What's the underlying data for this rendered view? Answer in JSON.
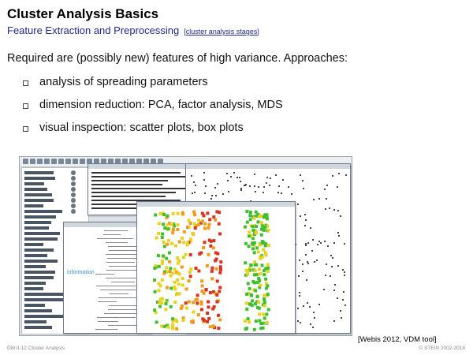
{
  "slide": {
    "title": "Cluster Analysis Basics",
    "subtitle": "Feature Extraction and Preprocessing",
    "link_text": "cluster analysis stages",
    "intro": "Required are (possibly new) features of high variance. Approaches:",
    "bullets": [
      "analysis of spreading parameters",
      "dimension reduction: PCA, factor analysis, MDS",
      "visual inspection: scatter plots, box plots"
    ],
    "image_credit": "[Webis 2012, VDM tool]",
    "footer_left": "DM:II-12   Cluster Analysis",
    "footer_right": "© STEIN 2002-2018"
  },
  "screenshot": {
    "tree_label": "information",
    "colors": {
      "green": "#3fbf2f",
      "yellow": "#e9d21f",
      "orange": "#f09a1b",
      "red": "#d8331f"
    }
  }
}
